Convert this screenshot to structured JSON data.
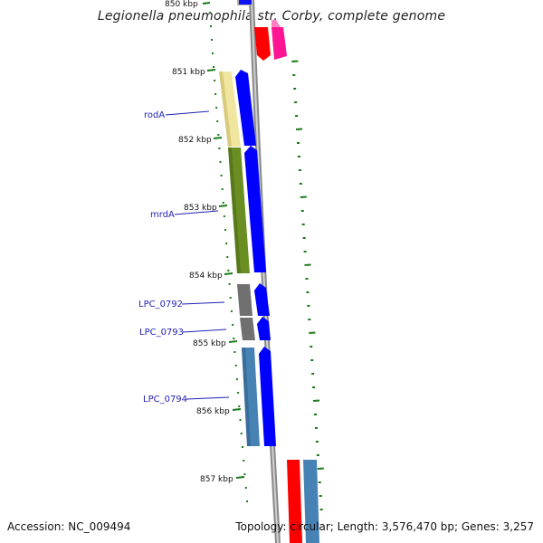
{
  "title": "Legionella pneumophila str. Corby, complete genome",
  "footer": {
    "accession": "Accession: NC_009494",
    "summary": "Topology: circular; Length: 3,576,470 bp; Genes: 3,257"
  },
  "kbp_ticks": [
    "850 kbp",
    "851 kbp",
    "852 kbp",
    "853 kbp",
    "854 kbp",
    "855 kbp",
    "856 kbp",
    "857 kbp"
  ],
  "gene_labels": [
    "rodA",
    "mrdA",
    "LPC_0792",
    "LPC_0793",
    "LPC_0794"
  ],
  "colors": {
    "backbone": "#8a8a8a",
    "forward_cds": "#0000ff",
    "tick_marks": "#1a7a1a",
    "label_line": "#1f1fb4",
    "gene_rodA": "#f0e6a0",
    "gene_mrdA": "#6b8e23",
    "gene_LPC_0792": "#707070",
    "gene_LPC_0793": "#707070",
    "gene_LPC_0794": "#4682b4",
    "feature_red": "#ff0000",
    "feature_magenta": "#ff1493",
    "feature_steelblue": "#4682b4"
  }
}
